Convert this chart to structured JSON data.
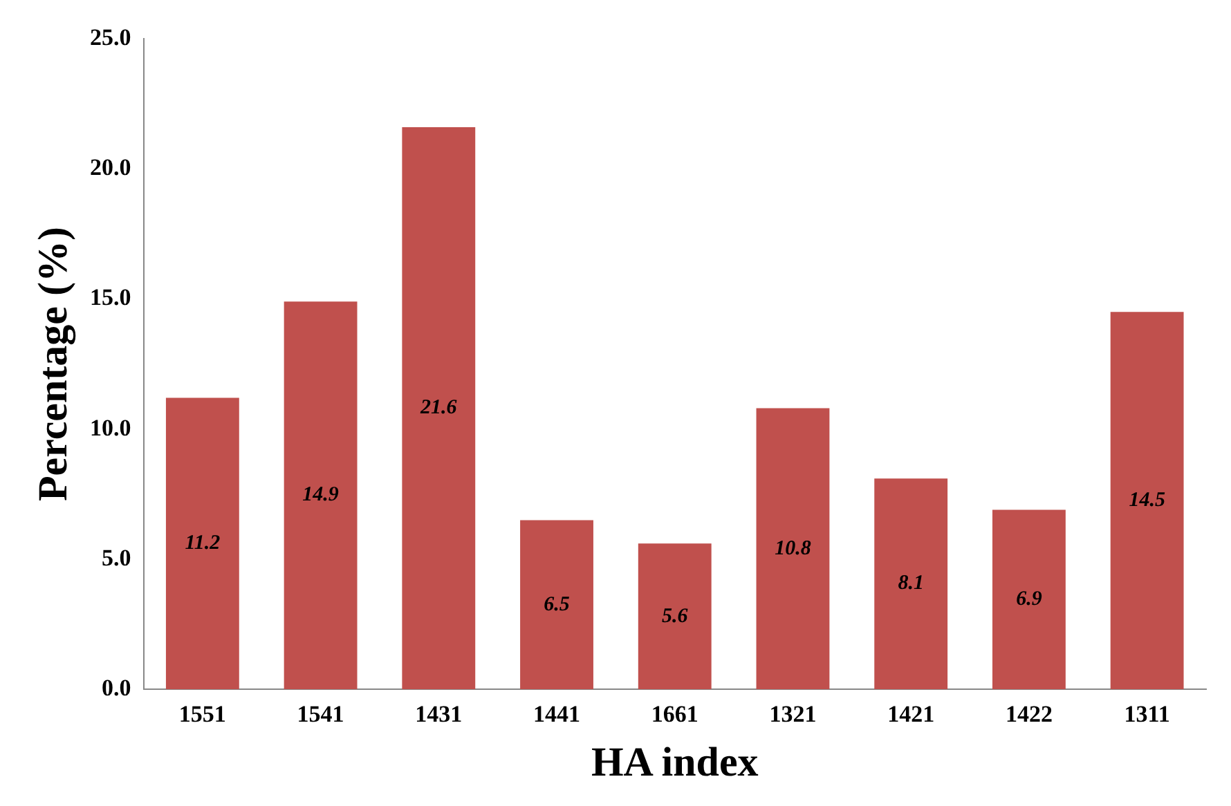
{
  "chart_data": {
    "type": "bar",
    "xlabel": "HA index",
    "ylabel": "Percentage (%)",
    "categories": [
      "1551",
      "1541",
      "1431",
      "1441",
      "1661",
      "1321",
      "1421",
      "1422",
      "1311"
    ],
    "values": [
      11.2,
      14.9,
      21.6,
      6.5,
      5.6,
      10.8,
      8.1,
      6.9,
      14.5
    ],
    "color": "#c0504d",
    "ylim": [
      0,
      25
    ],
    "yticks": [
      {
        "value": 0,
        "label": "0.0"
      },
      {
        "value": 5,
        "label": "5.0"
      },
      {
        "value": 10,
        "label": "10.0"
      },
      {
        "value": 15,
        "label": "15.0"
      },
      {
        "value": 20,
        "label": "20.0"
      },
      {
        "value": 25,
        "label": "25.0"
      }
    ],
    "data_labels": true,
    "grid": false,
    "legend": false
  }
}
